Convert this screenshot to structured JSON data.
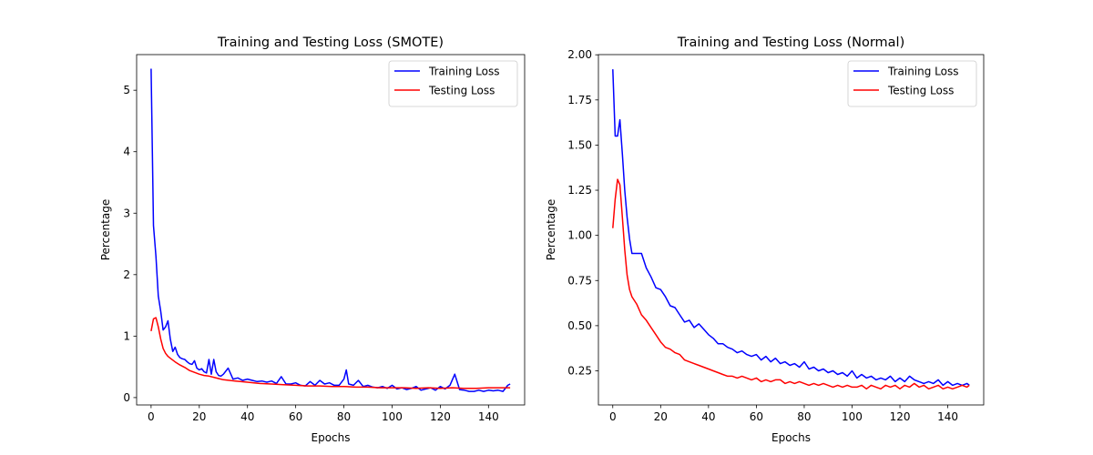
{
  "chart_data": [
    {
      "type": "line",
      "title": "Training and Testing Loss (SMOTE)",
      "xlabel": "Epochs",
      "ylabel": "Percentage",
      "xlim": [
        -6,
        155
      ],
      "ylim": [
        -0.12,
        5.58
      ],
      "xticks": [
        0,
        20,
        40,
        60,
        80,
        100,
        120,
        140
      ],
      "yticks": [
        0,
        1,
        2,
        3,
        4,
        5
      ],
      "ytick_decimals": 0,
      "legend": "top-right",
      "series": [
        {
          "name": "Training Loss",
          "color": "#0000ff",
          "x": [
            0,
            1,
            2,
            3,
            4,
            5,
            6,
            7,
            8,
            9,
            10,
            11,
            12,
            13,
            14,
            15,
            16,
            17,
            18,
            19,
            20,
            21,
            22,
            23,
            24,
            25,
            26,
            27,
            28,
            29,
            30,
            32,
            34,
            36,
            38,
            40,
            42,
            44,
            46,
            48,
            50,
            52,
            54,
            56,
            58,
            60,
            62,
            64,
            66,
            68,
            70,
            72,
            74,
            76,
            78,
            80,
            81,
            82,
            84,
            86,
            88,
            90,
            92,
            94,
            96,
            98,
            100,
            102,
            104,
            106,
            108,
            110,
            112,
            114,
            116,
            118,
            120,
            122,
            124,
            126,
            128,
            130,
            132,
            134,
            136,
            138,
            140,
            142,
            144,
            146,
            148,
            149
          ],
          "y": [
            5.35,
            2.8,
            2.3,
            1.65,
            1.4,
            1.1,
            1.15,
            1.25,
            0.95,
            0.75,
            0.82,
            0.7,
            0.65,
            0.63,
            0.62,
            0.58,
            0.55,
            0.54,
            0.6,
            0.48,
            0.45,
            0.47,
            0.42,
            0.4,
            0.62,
            0.38,
            0.62,
            0.42,
            0.36,
            0.35,
            0.38,
            0.48,
            0.3,
            0.32,
            0.28,
            0.3,
            0.28,
            0.26,
            0.27,
            0.25,
            0.27,
            0.23,
            0.34,
            0.22,
            0.22,
            0.24,
            0.2,
            0.19,
            0.26,
            0.2,
            0.28,
            0.22,
            0.24,
            0.2,
            0.2,
            0.3,
            0.45,
            0.22,
            0.2,
            0.28,
            0.18,
            0.2,
            0.17,
            0.16,
            0.18,
            0.15,
            0.2,
            0.14,
            0.16,
            0.13,
            0.15,
            0.18,
            0.12,
            0.14,
            0.16,
            0.12,
            0.18,
            0.14,
            0.2,
            0.38,
            0.13,
            0.12,
            0.1,
            0.1,
            0.12,
            0.1,
            0.12,
            0.11,
            0.12,
            0.1,
            0.2,
            0.22
          ]
        },
        {
          "name": "Testing Loss",
          "color": "#ff0000",
          "x": [
            0,
            1,
            2,
            3,
            4,
            5,
            6,
            7,
            8,
            10,
            12,
            14,
            16,
            18,
            20,
            22,
            24,
            26,
            28,
            30,
            35,
            40,
            45,
            50,
            55,
            60,
            65,
            70,
            75,
            80,
            85,
            90,
            95,
            100,
            105,
            110,
            115,
            120,
            125,
            130,
            135,
            140,
            145,
            149
          ],
          "y": [
            1.08,
            1.28,
            1.3,
            1.15,
            0.95,
            0.8,
            0.72,
            0.67,
            0.64,
            0.58,
            0.53,
            0.49,
            0.44,
            0.41,
            0.38,
            0.36,
            0.35,
            0.33,
            0.31,
            0.29,
            0.27,
            0.25,
            0.23,
            0.22,
            0.21,
            0.2,
            0.19,
            0.19,
            0.18,
            0.18,
            0.17,
            0.17,
            0.16,
            0.16,
            0.16,
            0.15,
            0.16,
            0.15,
            0.16,
            0.15,
            0.15,
            0.16,
            0.16,
            0.16
          ]
        }
      ]
    },
    {
      "type": "line",
      "title": "Training and Testing Loss (Normal)",
      "xlabel": "Epochs",
      "ylabel": "Percentage",
      "xlim": [
        -6,
        155
      ],
      "ylim": [
        0.061,
        2.001
      ],
      "xticks": [
        0,
        20,
        40,
        60,
        80,
        100,
        120,
        140
      ],
      "yticks": [
        0.25,
        0.5,
        0.75,
        1.0,
        1.25,
        1.5,
        1.75,
        2.0
      ],
      "ytick_decimals": 2,
      "legend": "top-right",
      "series": [
        {
          "name": "Training Loss",
          "color": "#0000ff",
          "x": [
            0,
            1,
            2,
            3,
            4,
            5,
            6,
            7,
            8,
            10,
            12,
            14,
            16,
            18,
            20,
            22,
            24,
            26,
            28,
            30,
            32,
            34,
            36,
            38,
            40,
            42,
            44,
            46,
            48,
            50,
            52,
            54,
            56,
            58,
            60,
            62,
            64,
            66,
            68,
            70,
            72,
            74,
            76,
            78,
            80,
            82,
            84,
            86,
            88,
            90,
            92,
            94,
            96,
            98,
            100,
            102,
            104,
            106,
            108,
            110,
            112,
            114,
            116,
            118,
            120,
            122,
            124,
            126,
            128,
            130,
            132,
            134,
            136,
            138,
            140,
            142,
            144,
            146,
            148,
            149
          ],
          "y": [
            1.92,
            1.55,
            1.55,
            1.64,
            1.45,
            1.25,
            1.1,
            0.98,
            0.9,
            0.9,
            0.9,
            0.82,
            0.77,
            0.71,
            0.7,
            0.66,
            0.61,
            0.6,
            0.56,
            0.52,
            0.53,
            0.49,
            0.51,
            0.48,
            0.45,
            0.43,
            0.4,
            0.4,
            0.38,
            0.37,
            0.35,
            0.36,
            0.34,
            0.33,
            0.34,
            0.31,
            0.33,
            0.3,
            0.32,
            0.29,
            0.3,
            0.28,
            0.29,
            0.27,
            0.3,
            0.26,
            0.27,
            0.25,
            0.26,
            0.24,
            0.25,
            0.23,
            0.24,
            0.22,
            0.25,
            0.21,
            0.23,
            0.21,
            0.22,
            0.2,
            0.21,
            0.2,
            0.22,
            0.19,
            0.21,
            0.19,
            0.22,
            0.2,
            0.19,
            0.18,
            0.19,
            0.18,
            0.2,
            0.17,
            0.19,
            0.17,
            0.18,
            0.17,
            0.18,
            0.17
          ]
        },
        {
          "name": "Testing Loss",
          "color": "#ff0000",
          "x": [
            0,
            1,
            2,
            3,
            4,
            5,
            6,
            7,
            8,
            10,
            12,
            14,
            16,
            18,
            20,
            22,
            24,
            26,
            28,
            30,
            32,
            34,
            36,
            38,
            40,
            42,
            44,
            46,
            48,
            50,
            52,
            54,
            56,
            58,
            60,
            62,
            64,
            66,
            68,
            70,
            72,
            74,
            76,
            78,
            80,
            82,
            84,
            86,
            88,
            90,
            92,
            94,
            96,
            98,
            100,
            102,
            104,
            106,
            108,
            110,
            112,
            114,
            116,
            118,
            120,
            122,
            124,
            126,
            128,
            130,
            132,
            134,
            136,
            138,
            140,
            142,
            144,
            146,
            148,
            149
          ],
          "y": [
            1.04,
            1.2,
            1.31,
            1.28,
            1.1,
            0.92,
            0.78,
            0.7,
            0.66,
            0.62,
            0.56,
            0.53,
            0.49,
            0.45,
            0.41,
            0.38,
            0.37,
            0.35,
            0.34,
            0.31,
            0.3,
            0.29,
            0.28,
            0.27,
            0.26,
            0.25,
            0.24,
            0.23,
            0.22,
            0.22,
            0.21,
            0.22,
            0.21,
            0.2,
            0.21,
            0.19,
            0.2,
            0.19,
            0.2,
            0.2,
            0.18,
            0.19,
            0.18,
            0.19,
            0.18,
            0.17,
            0.18,
            0.17,
            0.18,
            0.17,
            0.16,
            0.17,
            0.16,
            0.17,
            0.16,
            0.16,
            0.17,
            0.15,
            0.17,
            0.16,
            0.15,
            0.17,
            0.16,
            0.17,
            0.15,
            0.17,
            0.16,
            0.18,
            0.16,
            0.17,
            0.15,
            0.16,
            0.17,
            0.15,
            0.16,
            0.15,
            0.16,
            0.17,
            0.16,
            0.17
          ]
        }
      ]
    }
  ]
}
